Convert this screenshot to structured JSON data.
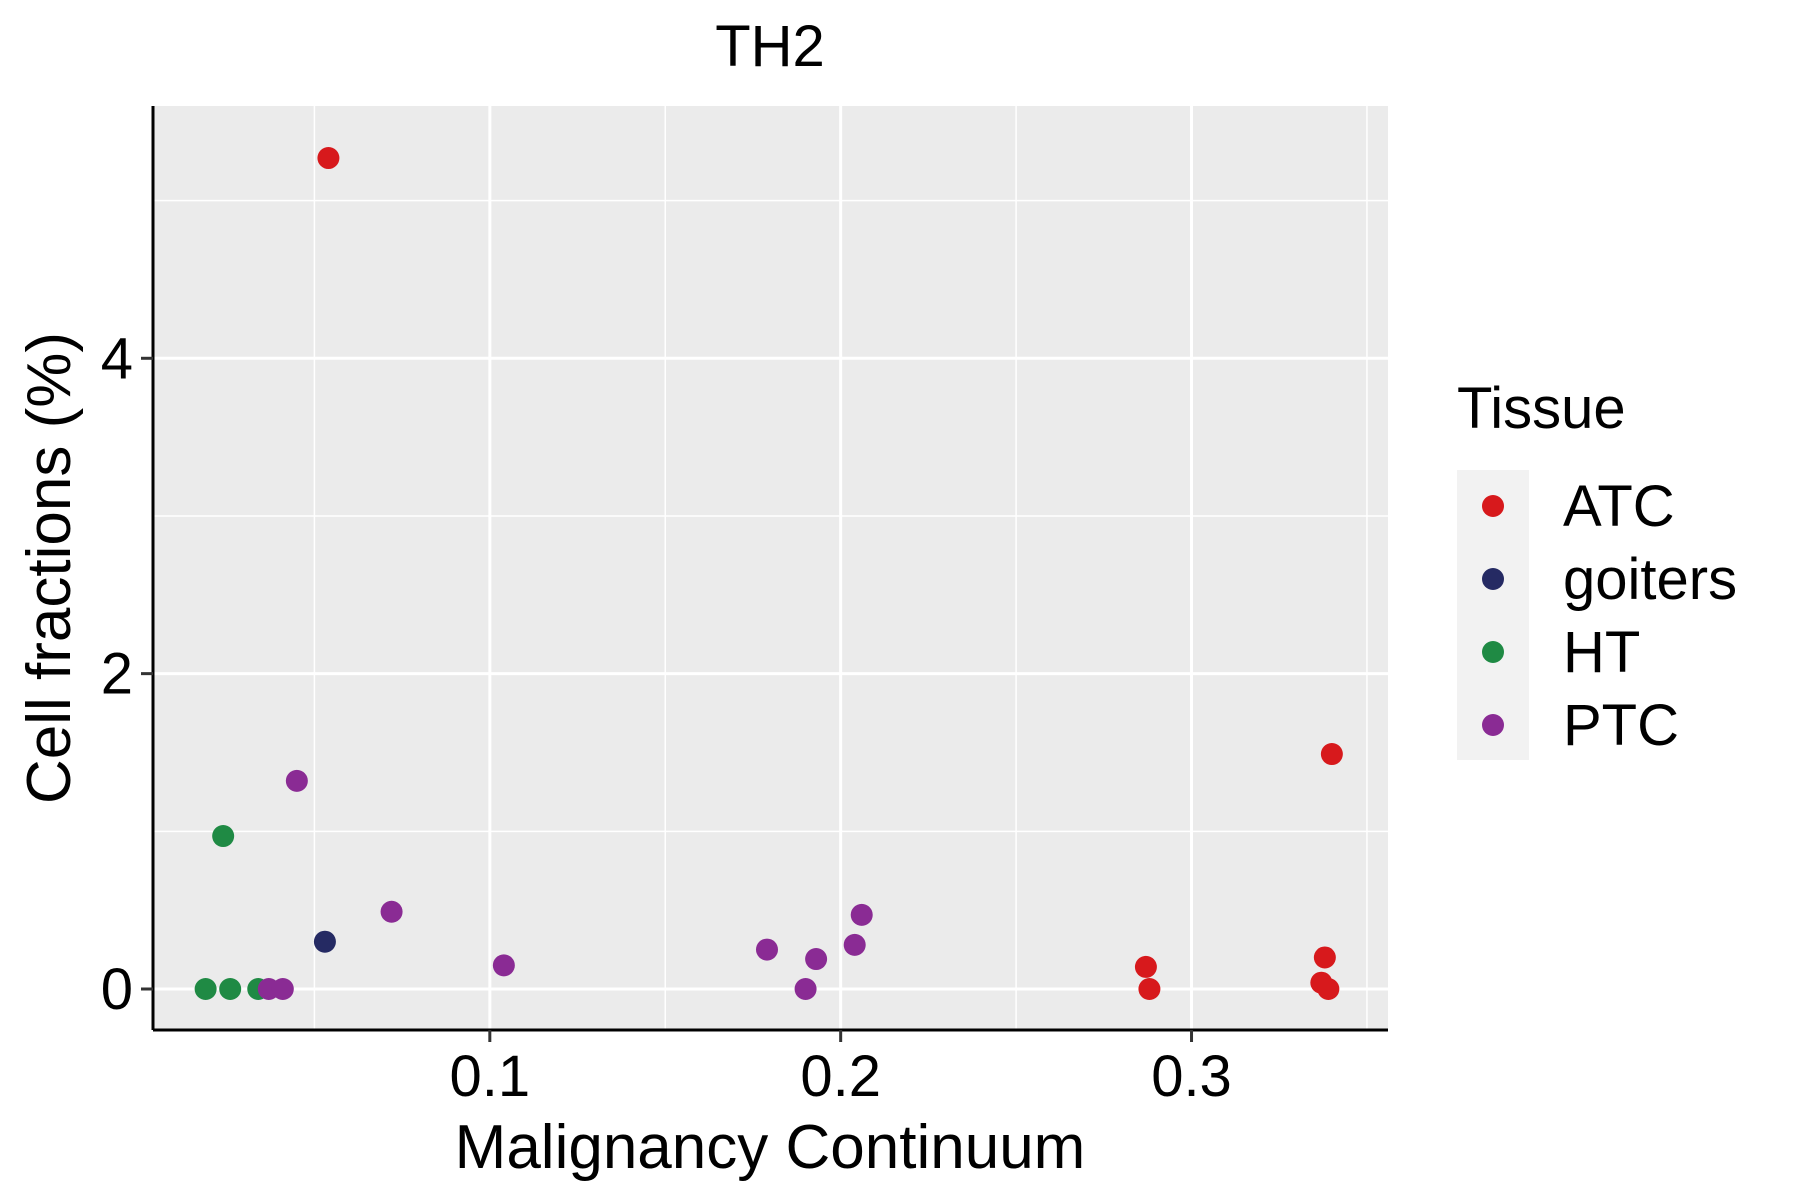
{
  "chart_data": {
    "type": "scatter",
    "title": "TH2",
    "xlabel": "Malignancy Continuum",
    "ylabel": "Cell fractions (%)",
    "xlim": [
      0.004,
      0.356
    ],
    "ylim": [
      -0.26,
      5.6
    ],
    "x_ticks": [
      0.1,
      0.2,
      0.3
    ],
    "x_tick_labels": [
      "0.1",
      "0.2",
      "0.3"
    ],
    "y_ticks": [
      0,
      2,
      4
    ],
    "y_tick_labels": [
      "0",
      "2",
      "4"
    ],
    "grid": true,
    "legend": {
      "title": "Tissue",
      "position": "right"
    },
    "series": [
      {
        "name": "ATC",
        "color": "#d7191c",
        "points": [
          {
            "x": 0.054,
            "y": 5.27
          },
          {
            "x": 0.287,
            "y": 0.14
          },
          {
            "x": 0.288,
            "y": 0.0
          },
          {
            "x": 0.338,
            "y": 0.2
          },
          {
            "x": 0.337,
            "y": 0.04
          },
          {
            "x": 0.339,
            "y": 0.0
          },
          {
            "x": 0.34,
            "y": 1.49
          }
        ]
      },
      {
        "name": "goiters",
        "color": "#252a63",
        "points": [
          {
            "x": 0.053,
            "y": 0.3
          }
        ]
      },
      {
        "name": "HT",
        "color": "#1f8a44",
        "points": [
          {
            "x": 0.024,
            "y": 0.97
          },
          {
            "x": 0.019,
            "y": 0.0
          },
          {
            "x": 0.026,
            "y": 0.0
          },
          {
            "x": 0.034,
            "y": 0.0
          }
        ]
      },
      {
        "name": "PTC",
        "color": "#8a2b94",
        "points": [
          {
            "x": 0.045,
            "y": 1.32
          },
          {
            "x": 0.072,
            "y": 0.49
          },
          {
            "x": 0.104,
            "y": 0.15
          },
          {
            "x": 0.037,
            "y": 0.0
          },
          {
            "x": 0.041,
            "y": 0.0
          },
          {
            "x": 0.179,
            "y": 0.25
          },
          {
            "x": 0.193,
            "y": 0.19
          },
          {
            "x": 0.19,
            "y": 0.0
          },
          {
            "x": 0.204,
            "y": 0.28
          },
          {
            "x": 0.206,
            "y": 0.47
          }
        ]
      }
    ]
  }
}
